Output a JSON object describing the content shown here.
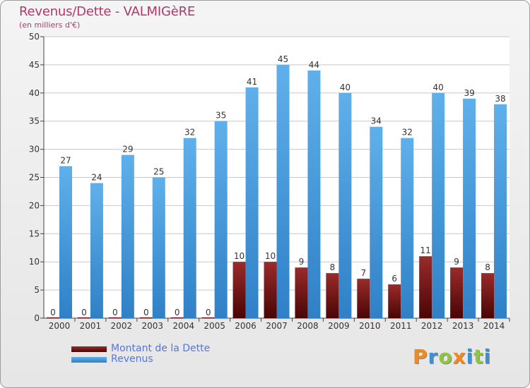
{
  "title": "Revenus/Dette - VALMIGèRE",
  "subtitle": "(en milliers d'€)",
  "logo_letters": [
    {
      "ch": "P",
      "color": "#ee8a1e"
    },
    {
      "ch": "r",
      "color": "#3f8fd2"
    },
    {
      "ch": "o",
      "color": "#8dc63f"
    },
    {
      "ch": "x",
      "color": "#ee8a1e"
    },
    {
      "ch": "i",
      "color": "#3f8fd2"
    },
    {
      "ch": "t",
      "color": "#8dc63f"
    },
    {
      "ch": "i",
      "color": "#3f8fd2"
    }
  ],
  "colors": {
    "dette_top": "#9a2b2b",
    "dette_bottom": "#4a0505",
    "revenus_top": "#5fb0ea",
    "revenus_bottom": "#2f80c6",
    "grid": "#c8c8c8",
    "axis": "#444444",
    "tick_text": "#333333"
  },
  "chart_data": {
    "type": "bar",
    "title": "Revenus/Dette - VALMIGèRE",
    "subtitle": "(en milliers d'€)",
    "xlabel": "",
    "ylabel": "",
    "ylim": [
      0,
      50
    ],
    "yticks": [
      0,
      5,
      10,
      15,
      20,
      25,
      30,
      35,
      40,
      45,
      50
    ],
    "grid": true,
    "legend": "bottom-left",
    "categories": [
      "2000",
      "2001",
      "2002",
      "2003",
      "2004",
      "2005",
      "2006",
      "2007",
      "2008",
      "2009",
      "2010",
      "2011",
      "2012",
      "2013",
      "2014"
    ],
    "series": [
      {
        "name": "Montant de la Dette",
        "values": [
          0,
          0,
          0,
          0,
          0,
          0,
          10,
          10,
          9,
          8,
          7,
          6,
          11,
          9,
          8
        ]
      },
      {
        "name": "Revenus",
        "values": [
          27,
          24,
          29,
          25,
          32,
          35,
          41,
          45,
          44,
          40,
          34,
          32,
          40,
          39,
          38
        ]
      }
    ]
  }
}
